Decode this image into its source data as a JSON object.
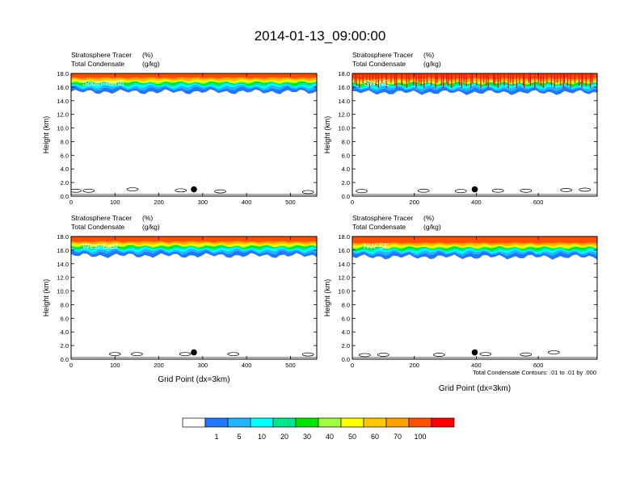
{
  "title": "2014-01-13_09:00:00",
  "footnote": "Total Condensate Contours: .01 to .01 by .000",
  "colors": {
    "bins": [
      "#ffffff",
      "#1f78ff",
      "#1fb4ff",
      "#00ffff",
      "#00e68c",
      "#00e600",
      "#a0ff3c",
      "#ffff00",
      "#ffc800",
      "#ffa000",
      "#ff5000",
      "#ff0000"
    ],
    "contour": "#000000",
    "marker": "#000000"
  },
  "chart_data": [
    {
      "type": "contour",
      "panel": "South-North",
      "label": "South-North",
      "header_left_1": "Stratosphere Tracer",
      "header_right_1": "(%)",
      "header_left_2": "Total Condensate",
      "header_right_2": "(g/kg)",
      "ylabel": "Height (km)",
      "xlabel": "",
      "xlim": [
        0,
        560
      ],
      "ylim": [
        0,
        18
      ],
      "xticks": [
        0,
        100,
        200,
        300,
        400,
        500
      ],
      "yticks": [
        "0.0",
        "2.0",
        "4.0",
        "6.0",
        "8.0",
        "10.0",
        "12.0",
        "14.0",
        "16.0",
        "18.0"
      ],
      "tracer_base_km": 15.3,
      "marker": {
        "x": 280,
        "y": 1.0
      },
      "contours": [
        [
          10,
          0.6,
          1.0
        ],
        [
          40,
          0.6,
          1.0
        ],
        [
          140,
          0.9,
          1.1
        ],
        [
          250,
          0.7,
          1.0
        ],
        [
          340,
          0.5,
          0.9
        ],
        [
          540,
          0.4,
          0.8
        ]
      ]
    },
    {
      "type": "contour",
      "panel": "SW-NE",
      "label": "SW-NE",
      "header_left_1": "Stratosphere Tracer",
      "header_right_1": "(%)",
      "header_left_2": "Total Condensate",
      "header_right_2": "(g/kg)",
      "ylabel": "Height (km)",
      "xlabel": "",
      "xlim": [
        0,
        790
      ],
      "ylim": [
        0,
        18
      ],
      "xticks": [
        0,
        200,
        400,
        600
      ],
      "yticks": [
        "0.0",
        "2.0",
        "4.0",
        "6.0",
        "8.0",
        "10.0",
        "12.0",
        "14.0",
        "16.0",
        "18.0"
      ],
      "tracer_base_km": 15.2,
      "marker": {
        "x": 395,
        "y": 1.0
      },
      "contours": [
        [
          30,
          0.5,
          1.0
        ],
        [
          230,
          0.6,
          1.0
        ],
        [
          350,
          0.5,
          1.0
        ],
        [
          470,
          0.6,
          1.0
        ],
        [
          560,
          0.6,
          1.0
        ],
        [
          690,
          0.8,
          1.0
        ],
        [
          750,
          0.8,
          1.1
        ]
      ]
    },
    {
      "type": "contour",
      "panel": "West-East",
      "label": "West-East",
      "header_left_1": "Stratosphere Tracer",
      "header_right_1": "(%)",
      "header_left_2": "Total Condensate",
      "header_right_2": "(g/kg)",
      "ylabel": "Height (km)",
      "xlabel": "Grid Point (dx=3km)",
      "xlim": [
        0,
        560
      ],
      "ylim": [
        0,
        18
      ],
      "xticks": [
        0,
        100,
        200,
        300,
        400,
        500
      ],
      "yticks": [
        "0.0",
        "2.0",
        "4.0",
        "6.0",
        "8.0",
        "10.0",
        "12.0",
        "14.0",
        "16.0",
        "18.0"
      ],
      "tracer_base_km": 15.2,
      "marker": {
        "x": 280,
        "y": 1.0
      },
      "contours": [
        [
          100,
          0.6,
          0.9
        ],
        [
          150,
          0.6,
          0.9
        ],
        [
          260,
          0.6,
          0.9
        ],
        [
          370,
          0.6,
          0.9
        ],
        [
          540,
          0.5,
          0.9
        ]
      ]
    },
    {
      "type": "contour",
      "panel": "NW-SE",
      "label": "NW-SE",
      "header_left_1": "Stratosphere Tracer",
      "header_right_1": "(%)",
      "header_left_2": "Total Condensate",
      "header_right_2": "(g/kg)",
      "ylabel": "Height (km)",
      "xlabel": "Grid Point (dx=3km)",
      "xlim": [
        0,
        790
      ],
      "ylim": [
        0,
        18
      ],
      "xticks": [
        0,
        200,
        400,
        600
      ],
      "yticks": [
        "0.0",
        "2.0",
        "4.0",
        "6.0",
        "8.0",
        "10.0",
        "12.0",
        "14.0",
        "16.0",
        "18.0"
      ],
      "tracer_base_km": 15.0,
      "marker": {
        "x": 395,
        "y": 1.0
      },
      "contours": [
        [
          40,
          0.4,
          0.8
        ],
        [
          100,
          0.5,
          0.8
        ],
        [
          280,
          0.5,
          0.8
        ],
        [
          430,
          0.6,
          0.9
        ],
        [
          560,
          0.5,
          0.9
        ],
        [
          650,
          0.8,
          1.2
        ]
      ]
    }
  ],
  "colorbar": {
    "labels": [
      "1",
      "5",
      "10",
      "20",
      "30",
      "40",
      "50",
      "60",
      "70",
      "100"
    ]
  }
}
